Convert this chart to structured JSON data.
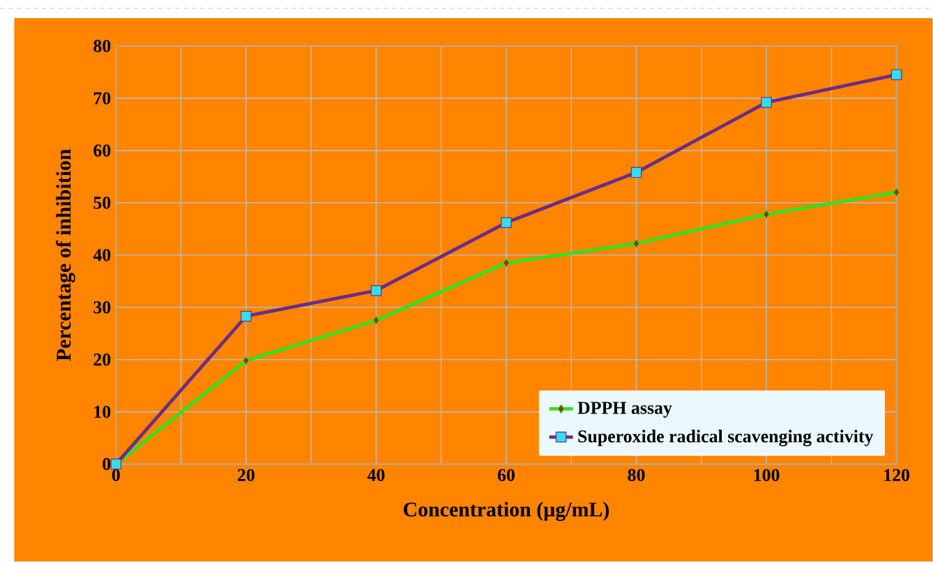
{
  "chart_data": {
    "type": "line",
    "xlabel": "Concentration  (µg/mL)",
    "ylabel": "Percentage of inhibition",
    "x": [
      0,
      20,
      40,
      60,
      80,
      100,
      120
    ],
    "series": [
      {
        "name": "DPPH assay",
        "color": "#33e020",
        "marker": "diamond",
        "values": [
          0,
          19.8,
          27.5,
          38.5,
          42.2,
          47.8,
          52
        ]
      },
      {
        "name": "Superoxide radical scavenging activity",
        "color": "#6a2d86",
        "marker": "square",
        "values": [
          0,
          28.3,
          33.2,
          46.2,
          55.8,
          69.2,
          74.5
        ]
      }
    ],
    "xlim": [
      0,
      120
    ],
    "ylim": [
      0,
      80
    ],
    "xticks": [
      0,
      20,
      40,
      60,
      80,
      100,
      120
    ],
    "yticks": [
      0,
      10,
      20,
      30,
      40,
      50,
      60,
      70,
      80
    ],
    "grid": true,
    "legend": "bottom right",
    "line_style": "solid"
  }
}
